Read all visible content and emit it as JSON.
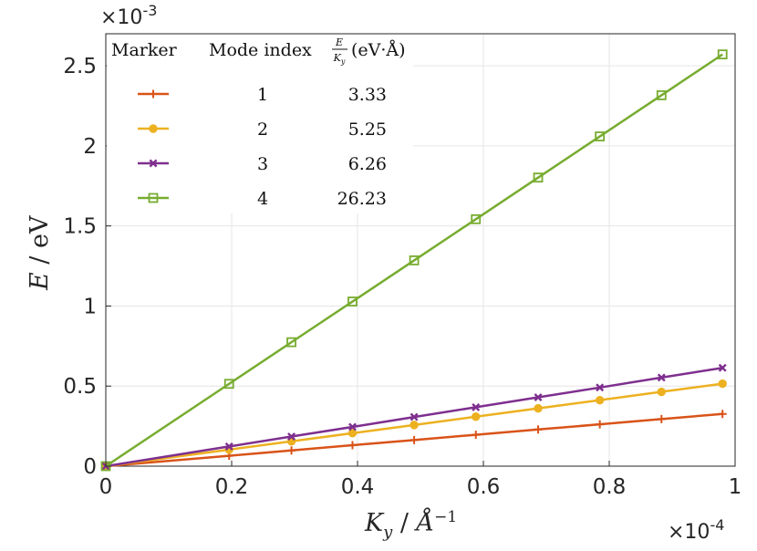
{
  "chart_data": {
    "type": "line",
    "xlabel": "K_y / Å^-1",
    "ylabel": "E / eV",
    "x_multiplier": "×10^-4",
    "y_multiplier": "×10^-3",
    "xlim": [
      0,
      1
    ],
    "ylim": [
      0,
      2.7
    ],
    "x_ticks": [
      0,
      0.2,
      0.4,
      0.6,
      0.8,
      1
    ],
    "x_tick_labels": [
      "0",
      "0.2",
      "0.4",
      "0.6",
      "0.8",
      "1"
    ],
    "y_ticks": [
      0,
      0.5,
      1,
      1.5,
      2,
      2.5
    ],
    "y_tick_labels": [
      "0",
      "0.5",
      "1",
      "1.5",
      "2",
      "2.5"
    ],
    "grid": true,
    "legend_placement": "top-left",
    "legend_headers": [
      "Marker",
      "Mode index",
      "E/K_y (eV·Å)"
    ],
    "x": [
      0,
      0.196,
      0.295,
      0.392,
      0.49,
      0.588,
      0.687,
      0.785,
      0.883,
      0.98
    ],
    "series": [
      {
        "mode": "1",
        "ratio": "3.33",
        "color": "#d95319",
        "marker": "plus",
        "values": [
          0,
          0.065,
          0.098,
          0.131,
          0.163,
          0.196,
          0.229,
          0.261,
          0.294,
          0.326
        ]
      },
      {
        "mode": "2",
        "ratio": "5.25",
        "color": "#edb120",
        "marker": "circle",
        "values": [
          0,
          0.103,
          0.155,
          0.206,
          0.257,
          0.309,
          0.361,
          0.412,
          0.464,
          0.515
        ]
      },
      {
        "mode": "3",
        "ratio": "6.26",
        "color": "#7e2f8e",
        "marker": "x",
        "values": [
          0,
          0.123,
          0.185,
          0.245,
          0.307,
          0.368,
          0.43,
          0.491,
          0.553,
          0.614
        ]
      },
      {
        "mode": "4",
        "ratio": "26.23",
        "color": "#77ac30",
        "marker": "square",
        "values": [
          0,
          0.514,
          0.774,
          1.028,
          1.285,
          1.542,
          1.802,
          2.059,
          2.316,
          2.571
        ]
      }
    ]
  }
}
